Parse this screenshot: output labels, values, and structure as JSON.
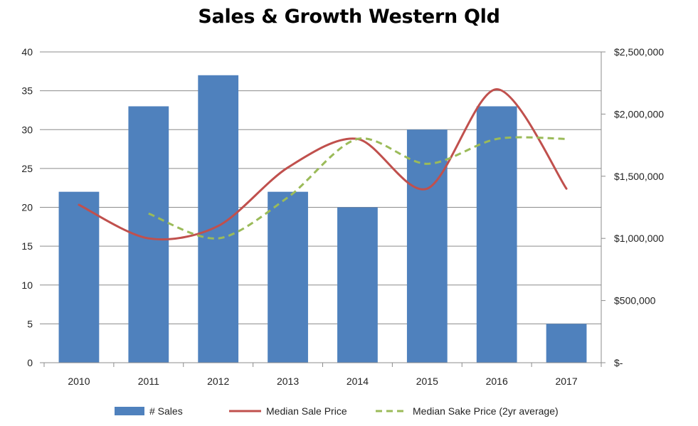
{
  "chart_data": {
    "type": "bar",
    "title": "Sales & Growth Western Qld",
    "categories": [
      "2010",
      "2011",
      "2012",
      "2013",
      "2014",
      "2015",
      "2016",
      "2017"
    ],
    "series": [
      {
        "name": "# Sales",
        "type": "bar",
        "axis": "left",
        "color": "#4f81bd",
        "values": [
          22,
          33,
          37,
          22,
          20,
          30,
          33,
          5
        ]
      },
      {
        "name": "Median Sale Price",
        "type": "line",
        "axis": "right",
        "color": "#c0504d",
        "smooth": true,
        "values": [
          1270000,
          1000000,
          1100000,
          1570000,
          1800000,
          1400000,
          2200000,
          1400000
        ]
      },
      {
        "name": "Median Sake Price (2yr average)",
        "type": "line",
        "axis": "right",
        "color": "#9bbb59",
        "dashed": true,
        "smooth": true,
        "values": [
          null,
          1200000,
          1000000,
          1330000,
          1800000,
          1600000,
          1800000,
          1800000
        ]
      }
    ],
    "y_left": {
      "ylim": [
        0,
        40
      ],
      "ticks": [
        "0",
        "5",
        "10",
        "15",
        "20",
        "25",
        "30",
        "35",
        "40"
      ]
    },
    "y_right": {
      "ylim": [
        0,
        2500000
      ],
      "ticks": [
        "$-",
        "$500,000",
        "$1,000,000",
        "$1,500,000",
        "$2,000,000",
        "$2,500,000"
      ]
    },
    "grid": true,
    "legend_position": "bottom"
  }
}
